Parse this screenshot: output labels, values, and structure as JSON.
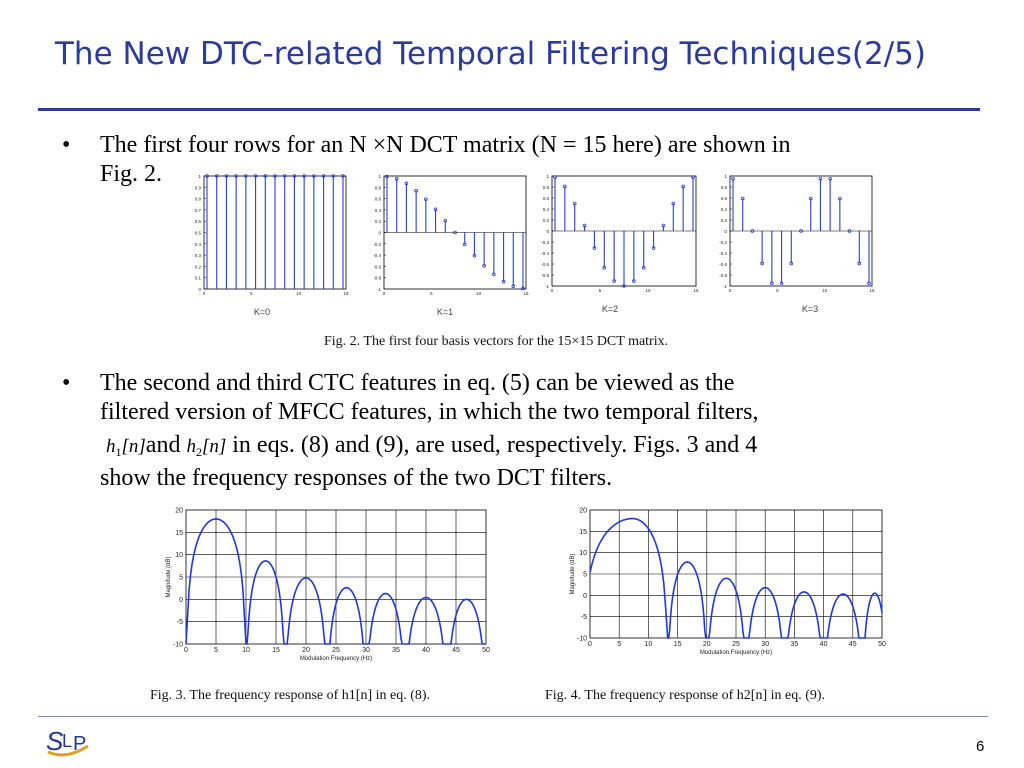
{
  "slide": {
    "title": "The New DTC-related Temporal Filtering Techniques(2/5)",
    "page_number": "6"
  },
  "bullets": [
    {
      "marker": "•",
      "line1": "The first four rows for an N ×N DCT matrix (N = 15 here) are shown in",
      "line2": "Fig. 2."
    },
    {
      "marker": "•",
      "line1": "The second and third CTC features in eq. (5) can be viewed as the",
      "line2": "filtered version of MFCC features, in which the two temporal filters,",
      "h1": "h",
      "h1_sub": "1",
      "h1_arg": "[n]",
      "and": "and",
      "h2": "h",
      "h2_sub": "2",
      "h2_arg": "[n]",
      "line3_rest": " in eqs. (8) and (9), are used, respectively. Figs. 3 and 4",
      "line4": "show the frequency responses of the two DCT filters."
    }
  ],
  "figures": {
    "fig2_caption": "Fig. 2.   The first four basis vectors for the 15×15 DCT matrix.",
    "fig3_caption": "Fig. 3.   The frequency response of h1[n] in eq. (8).",
    "fig4_caption": "Fig. 4.   The frequency response of h2[n] in eq. (9)."
  },
  "chart_data": [
    {
      "type": "stem",
      "label": "K=0",
      "n": 15,
      "values": [
        1,
        1,
        1,
        1,
        1,
        1,
        1,
        1,
        1,
        1,
        1,
        1,
        1,
        1,
        1
      ],
      "ylim": [
        0,
        1
      ],
      "yticks": [
        "1",
        "0.9",
        "0.8",
        "0.7",
        "0.6",
        "0.5",
        "0.4",
        "0.3",
        "0.2",
        "0.1",
        "0"
      ],
      "xticks": [
        "0",
        "5",
        "10",
        "15"
      ]
    },
    {
      "type": "stem",
      "label": "K=1",
      "n": 15,
      "values": [
        0.99,
        0.95,
        0.87,
        0.74,
        0.59,
        0.41,
        0.21,
        0.0,
        -0.21,
        -0.41,
        -0.59,
        -0.74,
        -0.87,
        -0.95,
        -0.99
      ],
      "ylim": [
        -1,
        1
      ],
      "yticks": [
        "1",
        "0.8",
        "0.6",
        "0.4",
        "0.2",
        "0",
        "-0.2",
        "-0.4",
        "-0.6",
        "-0.8",
        "-1"
      ],
      "xticks": [
        "0",
        "5",
        "10",
        "15"
      ]
    },
    {
      "type": "stem",
      "label": "K=2",
      "n": 15,
      "values": [
        0.98,
        0.81,
        0.5,
        0.1,
        -0.31,
        -0.67,
        -0.91,
        -1.0,
        -0.91,
        -0.67,
        -0.31,
        0.1,
        0.5,
        0.81,
        0.98
      ],
      "ylim": [
        -1,
        1
      ],
      "yticks": [
        "1",
        "0.8",
        "0.6",
        "0.4",
        "0.2",
        "0",
        "-0.2",
        "-0.4",
        "-0.6",
        "-0.8",
        "-1"
      ],
      "xticks": [
        "0",
        "5",
        "10",
        "15"
      ]
    },
    {
      "type": "stem",
      "label": "K=3",
      "n": 15,
      "values": [
        0.95,
        0.59,
        0.0,
        -0.59,
        -0.95,
        -0.95,
        -0.59,
        0.0,
        0.59,
        0.95,
        0.95,
        0.59,
        0.0,
        -0.59,
        -0.95
      ],
      "ylim": [
        -1,
        1
      ],
      "yticks": [
        "1",
        "0.8",
        "0.6",
        "0.4",
        "0.2",
        "0",
        "-0.2",
        "-0.4",
        "-0.6",
        "-0.8",
        "-1"
      ],
      "xticks": [
        "0",
        "5",
        "10",
        "15"
      ]
    },
    {
      "type": "line",
      "name": "h1",
      "xlabel": "Modulation Frequency (Hz)",
      "ylabel": "Magnitude (dB)",
      "xlim": [
        0,
        50
      ],
      "ylim": [
        -10,
        20
      ],
      "xticks": [
        "0",
        "5",
        "10",
        "15",
        "20",
        "25",
        "30",
        "35",
        "40",
        "45",
        "50"
      ],
      "yticks": [
        "20",
        "15",
        "10",
        "5",
        "0",
        "-5",
        "-10"
      ],
      "lobes": [
        {
          "start": 0,
          "end": 10,
          "peak": 18
        },
        {
          "start": 10,
          "end": 16.5,
          "peak": 8.6
        },
        {
          "start": 16.5,
          "end": 23.5,
          "peak": 4.8
        },
        {
          "start": 23.5,
          "end": 30,
          "peak": 2.6
        },
        {
          "start": 30,
          "end": 36.5,
          "peak": 1.3
        },
        {
          "start": 36.5,
          "end": 43.5,
          "peak": 0.4
        },
        {
          "start": 43.5,
          "end": 50,
          "peak": 0.0
        }
      ]
    },
    {
      "type": "line",
      "name": "h2",
      "xlabel": "Modulation Frequency (Hz)",
      "ylabel": "Magnitude (dB)",
      "xlim": [
        0,
        50
      ],
      "ylim": [
        -10,
        20
      ],
      "xticks": [
        "0",
        "5",
        "10",
        "15",
        "20",
        "25",
        "30",
        "35",
        "40",
        "45",
        "50"
      ],
      "yticks": [
        "20",
        "15",
        "10",
        "5",
        "0",
        "-5",
        "-10"
      ],
      "lobes": [
        {
          "start": 0,
          "end": 13.3,
          "peak": 18,
          "leftNull": false
        },
        {
          "start": 13.3,
          "end": 20,
          "peak": 7.8
        },
        {
          "start": 20,
          "end": 26.7,
          "peak": 4.0
        },
        {
          "start": 26.7,
          "end": 33.3,
          "peak": 1.8
        },
        {
          "start": 33.3,
          "end": 40,
          "peak": 0.8
        },
        {
          "start": 40,
          "end": 46.7,
          "peak": 0.3
        },
        {
          "start": 46.7,
          "end": 50,
          "peak": 0.5,
          "rightNull": false
        }
      ]
    }
  ]
}
